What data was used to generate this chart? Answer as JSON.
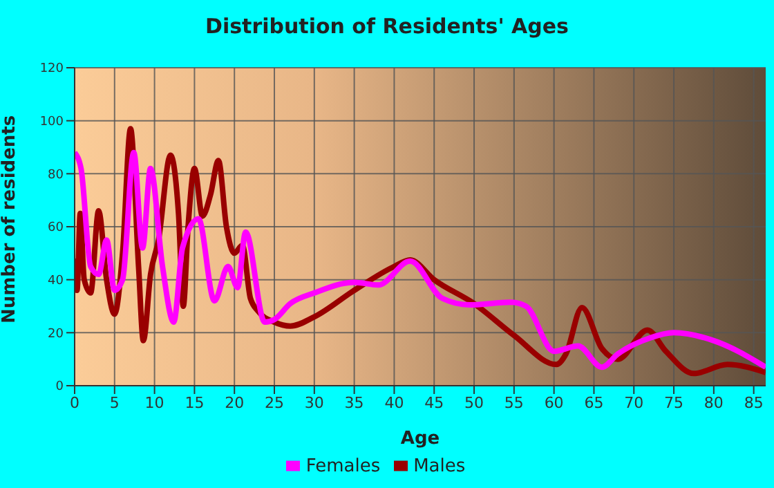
{
  "chart_data": {
    "type": "line",
    "title": "Distribution of Residents' Ages",
    "xlabel": "Age",
    "ylabel": "Number of residents",
    "xlim": [
      0,
      86.5
    ],
    "xticks": [
      0,
      5,
      10,
      15,
      20,
      25,
      30,
      35,
      40,
      45,
      50,
      55,
      60,
      65,
      70,
      75,
      80,
      85
    ],
    "ylim": [
      0,
      120
    ],
    "yticks": [
      0,
      20,
      40,
      60,
      80,
      100,
      120
    ],
    "grid": true,
    "legend": "bottom",
    "marker": "none",
    "line_style": "solid",
    "series": [
      {
        "name": "Males",
        "color": "#990000",
        "x": [
          0,
          0.3,
          0.7,
          1.2,
          2,
          3,
          4,
          5,
          6,
          7,
          8,
          8.6,
          9.5,
          10.5,
          12,
          13,
          13.6,
          14.2,
          15,
          16,
          17,
          18,
          19,
          20,
          21,
          22,
          23,
          25,
          27,
          30,
          35,
          40,
          42,
          45,
          50,
          55,
          60.3,
          61.5,
          63.5,
          66,
          68,
          71.7,
          74,
          77.5,
          81.7,
          86.5
        ],
        "values": [
          48,
          36,
          65,
          40,
          35,
          66,
          40,
          27,
          50,
          97,
          45,
          17,
          42,
          55,
          87,
          65,
          30,
          60,
          82,
          64,
          72,
          85,
          60,
          50,
          53,
          33,
          28,
          24,
          22.5,
          26,
          36,
          45,
          47.5,
          40,
          31,
          19,
          8,
          12,
          29.5,
          14,
          10,
          21,
          13,
          4.6,
          8,
          5
        ]
      },
      {
        "name": "Females",
        "color": "#ff00ff",
        "x": [
          0,
          0.8,
          2,
          3,
          4,
          5,
          6,
          7.4,
          8.5,
          9.5,
          11,
          12.4,
          13.5,
          15.5,
          17.5,
          19.2,
          20.4,
          21.4,
          23.8,
          25,
          27,
          30,
          35,
          38,
          42,
          46,
          49.4,
          54.6,
          56.5,
          60,
          63,
          66,
          68,
          72,
          75,
          80,
          86.5
        ],
        "values": [
          88,
          82,
          45,
          42,
          55,
          36,
          40,
          88,
          52,
          82,
          45,
          24,
          52,
          63,
          32,
          45,
          37,
          58,
          24,
          25,
          31,
          35,
          39,
          38,
          47,
          33,
          30.5,
          31.5,
          30,
          13,
          15,
          7,
          12,
          18,
          20,
          17,
          7
        ]
      }
    ]
  }
}
